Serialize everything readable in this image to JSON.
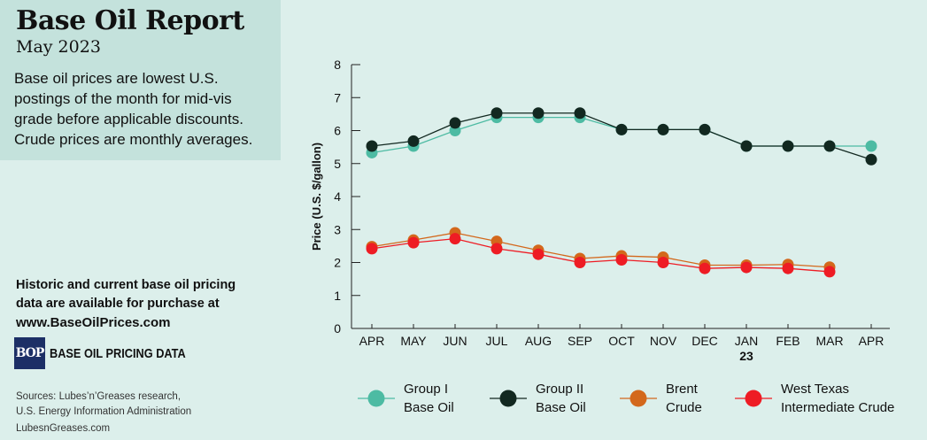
{
  "header": {
    "title": "Base Oil Report",
    "subtitle": "May 2023",
    "description": "Base oil prices are lowest U.S. postings of the month for mid-vis grade before applicable discounts. Crude prices are monthly averages."
  },
  "promo": {
    "line1": "Historic and current base oil pricing",
    "line2": "data are available for purchase at",
    "url": "www.BaseOilPrices.com",
    "logo_mark": "BOP",
    "logo_text": "BASE OIL PRICING DATA"
  },
  "footer": {
    "sources_line1": "Sources: Lubes’n’Greases research,",
    "sources_line2": "U.S. Energy Information Administration",
    "site": "LubesnGreases.com"
  },
  "colors": {
    "group1": "#4dbba3",
    "group2": "#122820",
    "brent": "#d3681c",
    "wti": "#ee1c24"
  },
  "chart_data": {
    "type": "line",
    "title": "Base Oil Report",
    "ylabel": "Price (U.S. $/gallon)",
    "ylim": [
      0,
      8
    ],
    "yticks": [
      0,
      1,
      2,
      3,
      4,
      5,
      6,
      7,
      8
    ],
    "x": [
      "APR",
      "MAY",
      "JUN",
      "JUL",
      "AUG",
      "SEP",
      "OCT",
      "NOV",
      "DEC",
      "JAN",
      "FEB",
      "MAR",
      "APR"
    ],
    "year_label": "23",
    "year_label_under": "JAN",
    "legend_placement": "bottom",
    "series": [
      {
        "name": "Group I\nBase Oil",
        "color_key": "group1",
        "values": [
          5.33,
          5.53,
          6.0,
          6.4,
          6.4,
          6.4,
          6.03,
          6.03,
          6.03,
          5.53,
          5.53,
          5.53,
          5.53
        ]
      },
      {
        "name": "Group II\nBase Oil",
        "color_key": "group2",
        "values": [
          5.53,
          5.68,
          6.23,
          6.53,
          6.53,
          6.53,
          6.03,
          6.03,
          6.03,
          5.53,
          5.53,
          5.53,
          5.12
        ]
      },
      {
        "name": "Brent\nCrude",
        "color_key": "brent",
        "values": [
          2.48,
          2.68,
          2.9,
          2.64,
          2.37,
          2.12,
          2.2,
          2.16,
          1.92,
          1.92,
          1.94,
          1.86,
          null
        ]
      },
      {
        "name": "West Texas\nIntermediate Crude",
        "color_key": "wti",
        "values": [
          2.42,
          2.6,
          2.72,
          2.42,
          2.25,
          2.0,
          2.08,
          2.0,
          1.82,
          1.85,
          1.82,
          1.72,
          null
        ]
      }
    ]
  }
}
